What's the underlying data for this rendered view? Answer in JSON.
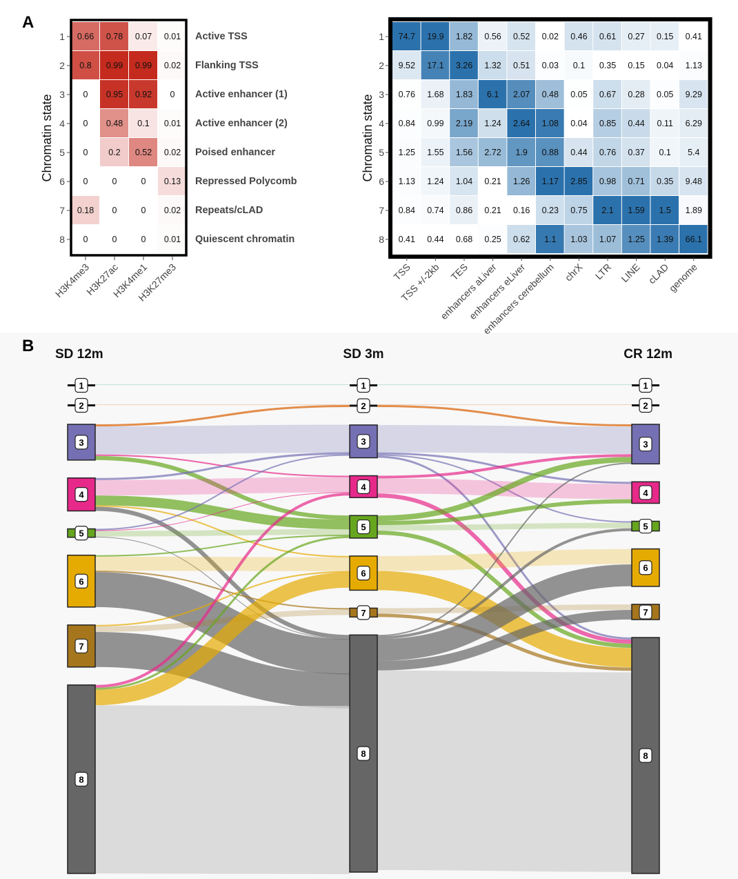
{
  "panel_labels": {
    "a": "A",
    "b": "B"
  },
  "chart_data": [
    {
      "type": "heatmap",
      "panel": "A-left",
      "ylabel": "Chromatin state",
      "rows": [
        "1",
        "2",
        "3",
        "4",
        "5",
        "6",
        "7",
        "8"
      ],
      "row_labels": [
        "Active TSS",
        "Flanking TSS",
        "Active enhancer (1)",
        "Active enhancer (2)",
        "Poised enhancer",
        "Repressed Polycomb",
        "Repeats/cLAD",
        "Quiescent chromatin"
      ],
      "columns": [
        "H3K4me3",
        "H3K27ac",
        "H3K4me1",
        "H3K27me3"
      ],
      "values": [
        [
          0.66,
          0.78,
          0.07,
          0.01
        ],
        [
          0.8,
          0.99,
          0.99,
          0.02
        ],
        [
          0,
          0.95,
          0.92,
          0
        ],
        [
          0,
          0.48,
          0.1,
          0.01
        ],
        [
          0,
          0.2,
          0.52,
          0.02
        ],
        [
          0,
          0,
          0,
          0.13
        ],
        [
          0.18,
          0,
          0,
          0.02
        ],
        [
          0,
          0,
          0,
          0.01
        ]
      ],
      "color_low": "#ffffff",
      "color_high": "#c4281c",
      "value_range": [
        0,
        1
      ]
    },
    {
      "type": "heatmap",
      "panel": "A-right",
      "ylabel": "Chromatin state",
      "rows": [
        "1",
        "2",
        "3",
        "4",
        "5",
        "6",
        "7",
        "8"
      ],
      "columns": [
        "TSS",
        "TSS +/-2kb",
        "TES",
        "enhancers aLiver",
        "enhancers eLiver",
        "enhancers cerebellum",
        "chrX",
        "LTR",
        "LINE",
        "cLAD",
        "genome"
      ],
      "values": [
        [
          74.7,
          19.9,
          1.82,
          0.56,
          0.52,
          0.02,
          0.46,
          0.61,
          0.27,
          0.15,
          0.41
        ],
        [
          9.52,
          17.1,
          3.26,
          1.32,
          0.51,
          0.03,
          0.1,
          0.35,
          0.15,
          0.04,
          1.13
        ],
        [
          0.76,
          1.68,
          1.83,
          6.1,
          2.07,
          0.48,
          0.05,
          0.67,
          0.28,
          0.05,
          9.29
        ],
        [
          0.84,
          0.99,
          2.19,
          1.24,
          2.64,
          1.08,
          0.04,
          0.85,
          0.44,
          0.11,
          6.29
        ],
        [
          1.25,
          1.55,
          1.56,
          2.72,
          1.9,
          0.88,
          0.44,
          0.76,
          0.37,
          0.1,
          5.4
        ],
        [
          1.13,
          1.24,
          1.04,
          0.21,
          1.26,
          1.17,
          2.85,
          0.98,
          0.71,
          0.35,
          9.48
        ],
        [
          0.84,
          0.74,
          0.86,
          0.21,
          0.16,
          0.23,
          0.75,
          2.1,
          1.59,
          1.5,
          1.89
        ],
        [
          0.41,
          0.44,
          0.68,
          0.25,
          0.62,
          1.1,
          1.03,
          1.07,
          1.25,
          1.39,
          66.1
        ]
      ],
      "color_low": "#ffffff",
      "color_high": "#2b72ad",
      "color_scaling": "per-column"
    },
    {
      "type": "sankey",
      "panel": "B",
      "stages": [
        "SD 12m",
        "SD 3m",
        "CR 12m"
      ],
      "nodes": [
        "1",
        "2",
        "3",
        "4",
        "5",
        "6",
        "7",
        "8"
      ],
      "node_colors": [
        "#1b9e77",
        "#d95f02",
        "#7570b3",
        "#e7298a",
        "#66a61e",
        "#e6ab02",
        "#a6761d",
        "#666666"
      ],
      "flows_stage1_to_stage2": [
        [
          1,
          1,
          1
        ],
        [
          2,
          2,
          1
        ],
        [
          3,
          2,
          3
        ],
        [
          3,
          3,
          40
        ],
        [
          3,
          4,
          2
        ],
        [
          3,
          5,
          6
        ],
        [
          4,
          3,
          3
        ],
        [
          4,
          4,
          22
        ],
        [
          4,
          5,
          14
        ],
        [
          4,
          6,
          2
        ],
        [
          4,
          8,
          6
        ],
        [
          5,
          3,
          2
        ],
        [
          5,
          4,
          1
        ],
        [
          5,
          5,
          8
        ],
        [
          5,
          8,
          1
        ],
        [
          6,
          5,
          2
        ],
        [
          6,
          6,
          20
        ],
        [
          6,
          7,
          2
        ],
        [
          6,
          8,
          50
        ],
        [
          7,
          6,
          2
        ],
        [
          7,
          7,
          8
        ],
        [
          7,
          8,
          50
        ],
        [
          8,
          4,
          4
        ],
        [
          8,
          5,
          3
        ],
        [
          8,
          6,
          22
        ],
        [
          8,
          8,
          240
        ]
      ],
      "flows_stage2_to_stage3": [
        [
          1,
          1,
          1
        ],
        [
          2,
          2,
          1
        ],
        [
          2,
          3,
          3
        ],
        [
          3,
          3,
          40
        ],
        [
          3,
          4,
          3
        ],
        [
          3,
          5,
          2
        ],
        [
          3,
          8,
          3
        ],
        [
          4,
          3,
          4
        ],
        [
          4,
          4,
          22
        ],
        [
          4,
          8,
          6
        ],
        [
          5,
          3,
          8
        ],
        [
          5,
          4,
          6
        ],
        [
          5,
          5,
          8
        ],
        [
          5,
          8,
          6
        ],
        [
          6,
          6,
          22
        ],
        [
          6,
          8,
          28
        ],
        [
          7,
          7,
          8
        ],
        [
          7,
          8,
          5
        ],
        [
          8,
          3,
          2
        ],
        [
          8,
          5,
          4
        ],
        [
          8,
          6,
          32
        ],
        [
          8,
          7,
          14
        ],
        [
          8,
          8,
          292
        ]
      ]
    }
  ]
}
